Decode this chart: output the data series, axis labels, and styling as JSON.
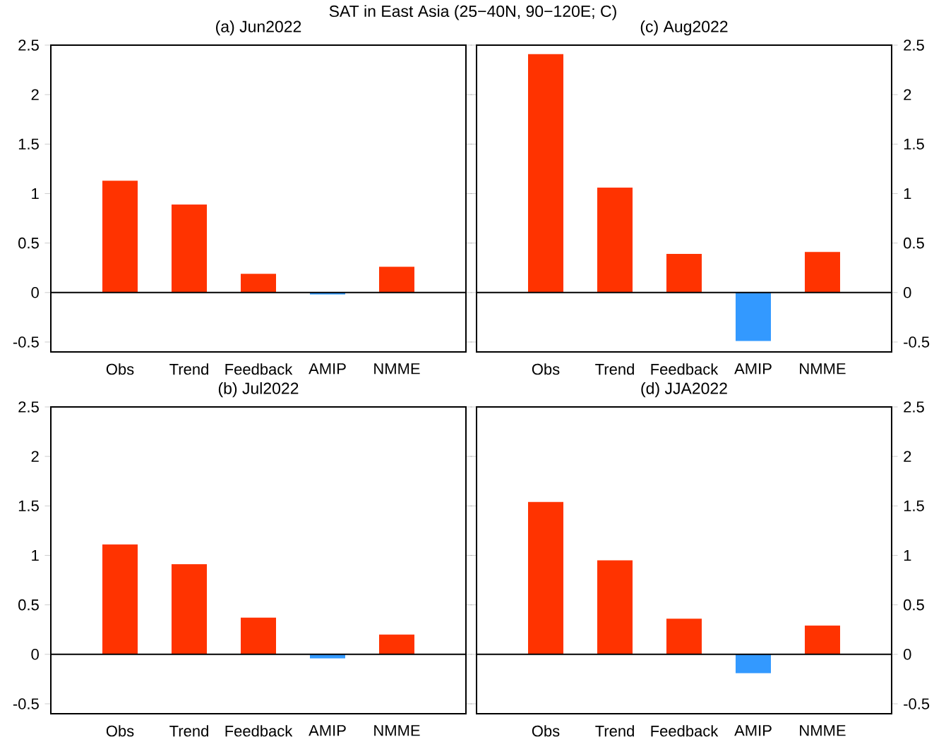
{
  "chart_data": [
    {
      "type": "bar",
      "title": "(a) Jun2022",
      "annotations": [
        "SAT in East Asia (25−40N, 90−120E; C)"
      ],
      "categories": [
        "Obs",
        "Trend",
        "Feedback",
        "AMIP",
        "NMME"
      ],
      "values": [
        1.13,
        0.89,
        0.19,
        -0.02,
        0.26
      ],
      "colors": [
        "#ff3300",
        "#ff3300",
        "#ff3300",
        "#3399ff",
        "#ff3300"
      ],
      "ylim": [
        -0.6,
        2.5
      ],
      "yticks": [
        -0.5,
        0,
        0.5,
        1,
        1.5,
        2,
        2.5
      ]
    },
    {
      "type": "bar",
      "title": "(c) Aug2022",
      "categories": [
        "Obs",
        "Trend",
        "Feedback",
        "AMIP",
        "NMME"
      ],
      "values": [
        2.41,
        1.06,
        0.39,
        -0.49,
        0.41
      ],
      "colors": [
        "#ff3300",
        "#ff3300",
        "#ff3300",
        "#3399ff",
        "#ff3300"
      ],
      "ylim": [
        -0.6,
        2.5
      ],
      "yticks": [
        -0.5,
        0,
        0.5,
        1,
        1.5,
        2,
        2.5
      ]
    },
    {
      "type": "bar",
      "title": "(b) Jul2022",
      "categories": [
        "Obs",
        "Trend",
        "Feedback",
        "AMIP",
        "NMME"
      ],
      "values": [
        1.11,
        0.91,
        0.37,
        -0.04,
        0.2
      ],
      "colors": [
        "#ff3300",
        "#ff3300",
        "#ff3300",
        "#3399ff",
        "#ff3300"
      ],
      "ylim": [
        -0.6,
        2.5
      ],
      "yticks": [
        -0.5,
        0,
        0.5,
        1,
        1.5,
        2,
        2.5
      ]
    },
    {
      "type": "bar",
      "title": "(d) JJA2022",
      "categories": [
        "Obs",
        "Trend",
        "Feedback",
        "AMIP",
        "NMME"
      ],
      "values": [
        1.54,
        0.95,
        0.36,
        -0.19,
        0.29
      ],
      "colors": [
        "#ff3300",
        "#ff3300",
        "#ff3300",
        "#3399ff",
        "#ff3300"
      ],
      "ylim": [
        -0.6,
        2.5
      ],
      "yticks": [
        -0.5,
        0,
        0.5,
        1,
        1.5,
        2,
        2.5
      ]
    }
  ]
}
